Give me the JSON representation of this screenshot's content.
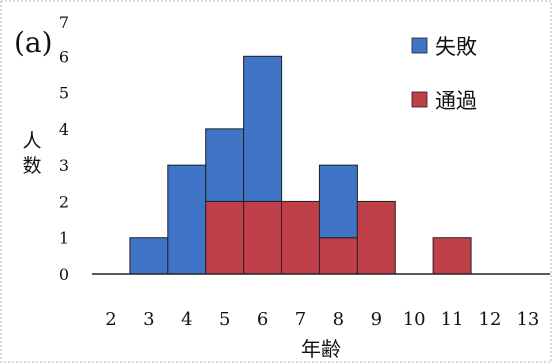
{
  "chart_data": {
    "type": "bar",
    "stacked": true,
    "panel_label": "(a)",
    "title": "",
    "xlabel": "年齢",
    "ylabel": "人数",
    "x": [
      2,
      3,
      4,
      5,
      6,
      7,
      8,
      9,
      10,
      11,
      12,
      13
    ],
    "x_tick_labels": [
      "2",
      "3",
      "4",
      "5",
      "6",
      "7",
      "8",
      "9",
      "10",
      "11",
      "12",
      "13"
    ],
    "ylim": [
      0,
      7
    ],
    "y_ticks": [
      0,
      1,
      2,
      3,
      4,
      5,
      6,
      7
    ],
    "y_tick_labels": [
      "0",
      "1",
      "2",
      "3",
      "4",
      "5",
      "6",
      "7"
    ],
    "grid": false,
    "legend_position": "top-right",
    "series": [
      {
        "name": "通過",
        "color": "#c0404a",
        "values": [
          0,
          0,
          0,
          2,
          2,
          2,
          1,
          2,
          0,
          1,
          0,
          0
        ]
      },
      {
        "name": "失敗",
        "color": "#3f74c6",
        "values": [
          0,
          1,
          3,
          2,
          4,
          0,
          2,
          0,
          0,
          0,
          0,
          0
        ]
      }
    ],
    "legend_order": [
      "失敗",
      "通過"
    ]
  }
}
